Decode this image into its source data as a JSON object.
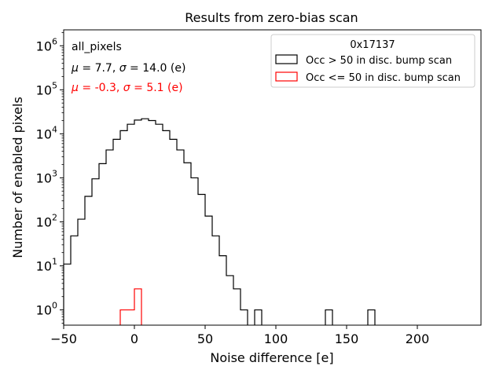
{
  "chart_data": {
    "type": "histogram",
    "title": "Results from zero-bias scan",
    "xlabel": "Noise difference [e]",
    "ylabel": "Number of enabled pixels",
    "xlim": [
      -50,
      245
    ],
    "ylim": [
      0.45,
      2300000
    ],
    "yscale": "log",
    "grid": false,
    "x_ticks": [
      -50,
      0,
      50,
      100,
      150,
      200
    ],
    "x_tick_labels": [
      "−50",
      "0",
      "50",
      "100",
      "150",
      "200"
    ],
    "y_ticks": [
      1,
      10,
      100,
      1000,
      10000,
      100000,
      1000000
    ],
    "y_tick_labels": [
      {
        "base": "10",
        "exp": "0"
      },
      {
        "base": "10",
        "exp": "1"
      },
      {
        "base": "10",
        "exp": "2"
      },
      {
        "base": "10",
        "exp": "3"
      },
      {
        "base": "10",
        "exp": "4"
      },
      {
        "base": "10",
        "exp": "5"
      },
      {
        "base": "10",
        "exp": "6"
      }
    ],
    "bin_width": 5,
    "annotations": {
      "label": "all_pixels",
      "stats_1": {
        "mu": "7.7",
        "sigma": "14.0",
        "unit": "(e)",
        "color": "#000000"
      },
      "stats_2": {
        "mu": "-0.3",
        "sigma": "5.1",
        "unit": "(e)",
        "color": "#ff0000"
      }
    },
    "legend": {
      "title": "0x17137",
      "placement": "top-right",
      "entries": [
        {
          "label": "Occ > 50 in disc. bump scan",
          "color": "#000000"
        },
        {
          "label": "Occ <= 50 in disc. bump scan",
          "color": "#ff0000"
        }
      ]
    },
    "series": [
      {
        "name": "Occ > 50 in disc. bump scan",
        "color": "#000000",
        "bins": [
          {
            "x": -50,
            "count": 11
          },
          {
            "x": -45,
            "count": 48
          },
          {
            "x": -40,
            "count": 115
          },
          {
            "x": -35,
            "count": 380
          },
          {
            "x": -30,
            "count": 950
          },
          {
            "x": -25,
            "count": 2100
          },
          {
            "x": -20,
            "count": 4300
          },
          {
            "x": -15,
            "count": 7500
          },
          {
            "x": -10,
            "count": 11800
          },
          {
            "x": -5,
            "count": 16500
          },
          {
            "x": 0,
            "count": 20500
          },
          {
            "x": 5,
            "count": 22000
          },
          {
            "x": 10,
            "count": 20000
          },
          {
            "x": 15,
            "count": 16500
          },
          {
            "x": 20,
            "count": 11800
          },
          {
            "x": 25,
            "count": 7500
          },
          {
            "x": 30,
            "count": 4300
          },
          {
            "x": 35,
            "count": 2200
          },
          {
            "x": 40,
            "count": 1000
          },
          {
            "x": 45,
            "count": 420
          },
          {
            "x": 50,
            "count": 135
          },
          {
            "x": 55,
            "count": 48
          },
          {
            "x": 60,
            "count": 17
          },
          {
            "x": 65,
            "count": 6
          },
          {
            "x": 70,
            "count": 3
          },
          {
            "x": 75,
            "count": 1
          },
          {
            "x": 85,
            "count": 1
          },
          {
            "x": 135,
            "count": 1
          },
          {
            "x": 165,
            "count": 1
          }
        ]
      },
      {
        "name": "Occ <= 50 in disc. bump scan",
        "color": "#ff0000",
        "bins": [
          {
            "x": -10,
            "count": 1
          },
          {
            "x": -5,
            "count": 1
          },
          {
            "x": 0,
            "count": 3
          }
        ]
      }
    ]
  }
}
